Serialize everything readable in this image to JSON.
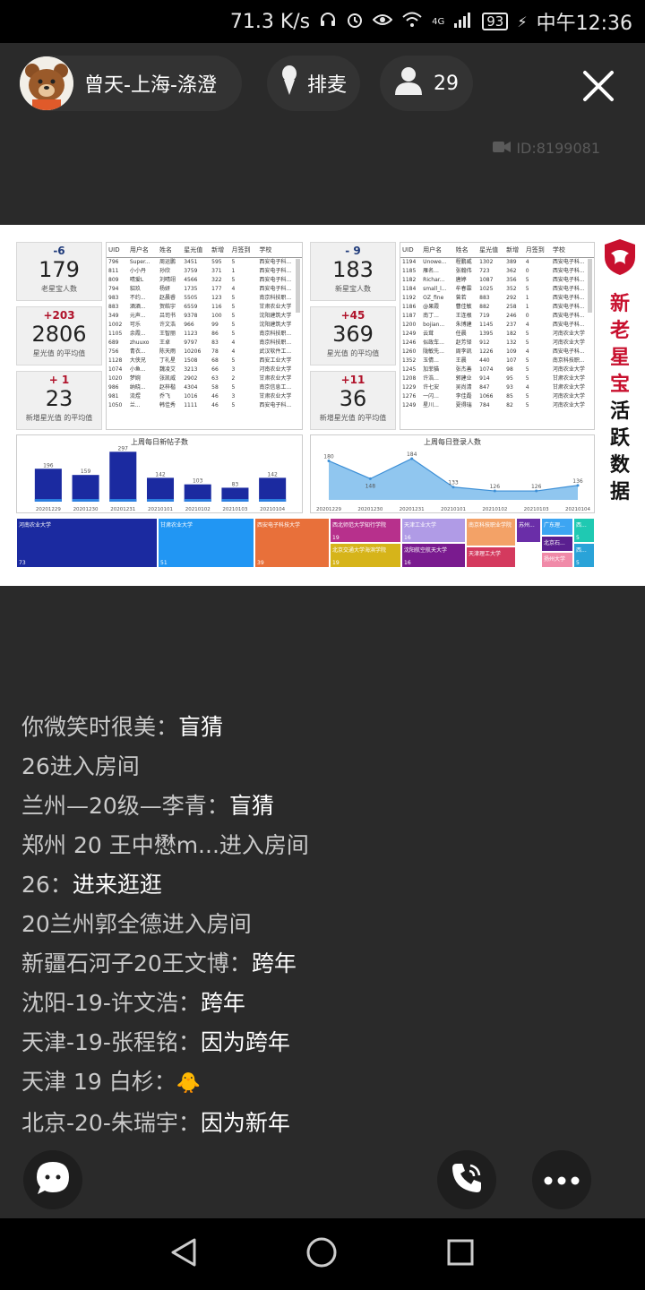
{
  "status_bar": {
    "net_speed": "71.3 K/s",
    "network": "4G",
    "battery": "93",
    "time": "中午12:36"
  },
  "header": {
    "host_name": "曾天-上海-涤澄",
    "mic_queue_label": "排麦",
    "viewer_count": "29",
    "room_id": "ID:8199081"
  },
  "dashboard": {
    "brand_title_red": "新老星宝",
    "brand_title_black": "活跃数据",
    "left_kpis": [
      {
        "delta": "-6",
        "value": "179",
        "label": "老星宝人数"
      },
      {
        "delta": "+203",
        "value": "2806",
        "label": "星光值 的平均值"
      },
      {
        "delta": "+ 1",
        "value": "23",
        "label": "新增星光值 的平均值"
      }
    ],
    "right_kpis": [
      {
        "delta": "- 9",
        "value": "183",
        "label": "新星宝人数"
      },
      {
        "delta": "+45",
        "value": "369",
        "label": "星光值 的平均值"
      },
      {
        "delta": "+11",
        "value": "36",
        "label": "新增星光值 的平均值"
      }
    ],
    "table_headers": [
      "UID",
      "用户名",
      "姓名",
      "星光值",
      "新增",
      "月签到",
      "学校"
    ],
    "left_table": [
      [
        "796",
        "Super...",
        "周运鹏",
        "3451",
        "595",
        "5",
        "西安电子科..."
      ],
      [
        "811",
        "小小丹",
        "孙欣",
        "3759",
        "371",
        "1",
        "西安电子科..."
      ],
      [
        "809",
        "晴爱L",
        "刘晴翊",
        "4566",
        "322",
        "5",
        "西安电子科..."
      ],
      [
        "794",
        "貂玖",
        "杨妍",
        "1735",
        "177",
        "4",
        "西安电子科..."
      ],
      [
        "983",
        "不约...",
        "赵晨睿",
        "5505",
        "123",
        "5",
        "南京科技职..."
      ],
      [
        "883",
        "酒酒...",
        "贺皓宇",
        "6559",
        "116",
        "5",
        "甘肃农业大学"
      ],
      [
        "349",
        "元声...",
        "吕司书",
        "9378",
        "100",
        "5",
        "沈阳建筑大学"
      ],
      [
        "1002",
        "可乐",
        "许文浩",
        "966",
        "99",
        "5",
        "沈阳建筑大学"
      ],
      [
        "1105",
        "余霞...",
        "王智丽",
        "1123",
        "86",
        "5",
        "南京科技职..."
      ],
      [
        "689",
        "zhuuxo",
        "王卓",
        "9797",
        "83",
        "4",
        "南京科技职..."
      ],
      [
        "756",
        "青衣...",
        "陈天雨",
        "10206",
        "78",
        "4",
        "武汉软件工..."
      ],
      [
        "1128",
        "大侠兄",
        "丁礼星",
        "1508",
        "68",
        "5",
        "西安工业大学"
      ],
      [
        "1074",
        "小鱼...",
        "魏凌艾",
        "3213",
        "66",
        "3",
        "河南农业大学"
      ],
      [
        "1020",
        "梦婉",
        "张凯威",
        "2902",
        "63",
        "2",
        "甘肃农业大学"
      ],
      [
        "986",
        "纳晓...",
        "赵梓楷",
        "4304",
        "58",
        "5",
        "南京信息工..."
      ],
      [
        "981",
        "流煜",
        "乔飞",
        "1016",
        "46",
        "3",
        "甘肃农业大学"
      ],
      [
        "1050",
        "兰...",
        "韩佳秀",
        "1111",
        "46",
        "5",
        "西安电子科..."
      ]
    ],
    "right_table": [
      [
        "1194",
        "Unowe...",
        "程鹏威",
        "1302",
        "389",
        "4",
        "西安电子科..."
      ],
      [
        "1185",
        "雁名...",
        "张翰伟",
        "723",
        "362",
        "0",
        "西安电子科..."
      ],
      [
        "1182",
        "Richar...",
        "唐婷",
        "1087",
        "356",
        "5",
        "西安电子科..."
      ],
      [
        "1184",
        "small_l...",
        "牟春霖",
        "1025",
        "352",
        "5",
        "西安电子科..."
      ],
      [
        "1192",
        "OZ_fine",
        "曾若",
        "883",
        "292",
        "1",
        "西安电子科..."
      ],
      [
        "1186",
        "@果霞",
        "曹佳敏",
        "882",
        "258",
        "1",
        "西安电子科..."
      ],
      [
        "1187",
        "南丁...",
        "王连根",
        "719",
        "246",
        "0",
        "西安电子科..."
      ],
      [
        "1200",
        "bojian...",
        "朱博建",
        "1145",
        "237",
        "4",
        "西安电子科..."
      ],
      [
        "1249",
        "云茸",
        "任晨",
        "1395",
        "182",
        "5",
        "河南农业大学"
      ],
      [
        "1246",
        "似政车...",
        "赵芳铎",
        "912",
        "132",
        "5",
        "河南农业大学"
      ],
      [
        "1260",
        "陇敏先...",
        "周李凯",
        "1226",
        "109",
        "4",
        "西安电子科..."
      ],
      [
        "1352",
        "玉倩...",
        "王晨",
        "440",
        "107",
        "5",
        "南京科技职..."
      ],
      [
        "1245",
        "加菲猫",
        "张杰善",
        "1074",
        "98",
        "5",
        "河南农业大学"
      ],
      [
        "1208",
        "许浩...",
        "郭建业",
        "914",
        "95",
        "5",
        "甘肃农业大学"
      ],
      [
        "1229",
        "许七安",
        "吴尚清",
        "847",
        "93",
        "4",
        "甘肃农业大学"
      ],
      [
        "1276",
        "一闪...",
        "李佳磊",
        "1066",
        "85",
        "5",
        "河南农业大学"
      ],
      [
        "1249",
        "星川...",
        "夏得瑞",
        "784",
        "82",
        "5",
        "河南农业大学"
      ]
    ],
    "treemap": [
      {
        "name": "河南农业大学",
        "value": "73",
        "color": "#1b2aa0"
      },
      {
        "name": "甘肃农业大学",
        "value": "51",
        "color": "#2196f3"
      },
      {
        "name": "西安电子科技大学",
        "value": "39",
        "color": "#e8703a"
      },
      {
        "name": "西北师范大学知行学院",
        "value": "19",
        "color": "#b7308c"
      },
      {
        "name": "北京交通大学海滨学院",
        "value": "19",
        "color": "#d6b41a"
      },
      {
        "name": "天津工业大学",
        "value": "16",
        "color": "#b09be6"
      },
      {
        "name": "沈阳航空航天大学",
        "value": "16",
        "color": "#7a1b8f"
      },
      {
        "name": "南京科技职业学院",
        "value": "",
        "color": "#f3a267"
      },
      {
        "name": "天津理工大学",
        "value": "",
        "color": "#d43a5e"
      },
      {
        "name": "苏州...",
        "value": "",
        "color": "#6a2ea8"
      },
      {
        "name": "广东理...",
        "value": "",
        "color": "#3da5f2"
      },
      {
        "name": "北京石...",
        "value": "",
        "color": "#5a1f90"
      },
      {
        "name": "扬州大学",
        "value": "",
        "color": "#f08aa8"
      },
      {
        "name": "西...",
        "value": "5",
        "color": "#1fc9b2"
      },
      {
        "name": "西...",
        "value": "5",
        "color": "#2aa3d8"
      }
    ]
  },
  "chart_data": [
    {
      "type": "bar",
      "title": "上周每日新帖子数",
      "categories": [
        "20201229",
        "20201230",
        "20201231",
        "20210101",
        "20210102",
        "20210103",
        "20210104"
      ],
      "values": [
        196,
        159,
        297,
        142,
        103,
        83,
        142
      ],
      "ylim": [
        0,
        320
      ],
      "color": "#1b2aa0"
    },
    {
      "type": "area",
      "title": "上周每日登录人数",
      "categories": [
        "20201229",
        "20201230",
        "20201231",
        "20210101",
        "20210102",
        "20210103",
        "20210104"
      ],
      "values": [
        180,
        148,
        184,
        133,
        126,
        126,
        136
      ],
      "ylim": [
        110,
        200
      ],
      "color": "#6bb3ea"
    }
  ],
  "chat": [
    {
      "user": "你微笑时很美：",
      "message": "盲猜"
    },
    {
      "user": "26进入房间",
      "message": ""
    },
    {
      "user": "兰州—20级—李青：",
      "message": "盲猜"
    },
    {
      "user": "郑州 20 王中懋m...进入房间",
      "message": ""
    },
    {
      "user": "26：",
      "message": "进来逛逛"
    },
    {
      "user": "20兰州郭全德进入房间",
      "message": ""
    },
    {
      "user": "新疆石河子20王文博：",
      "message": "跨年"
    },
    {
      "user": "沈阳-19-许文浩：",
      "message": "跨年"
    },
    {
      "user": "天津-19-张程铭：",
      "message": "因为跨年"
    },
    {
      "user": "天津 19 白杉：",
      "message": ""
    },
    {
      "user": "北京-20-朱瑞宇：",
      "message": "因为新年"
    }
  ]
}
